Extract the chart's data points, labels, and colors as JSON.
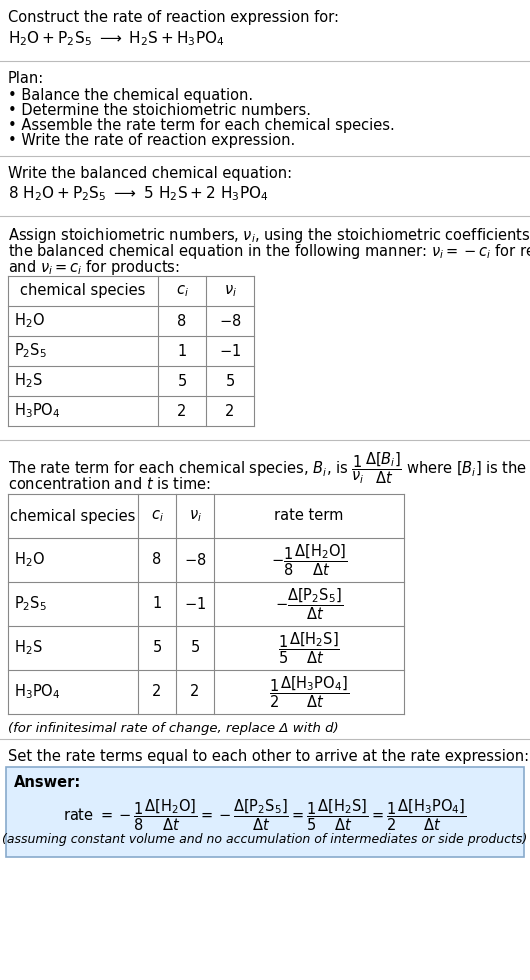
{
  "title_line1": "Construct the rate of reaction expression for:",
  "plan_header": "Plan:",
  "plan_items": [
    "• Balance the chemical equation.",
    "• Determine the stoichiometric numbers.",
    "• Assemble the rate term for each chemical species.",
    "• Write the rate of reaction expression."
  ],
  "balanced_header": "Write the balanced chemical equation:",
  "answer_label": "Answer:",
  "answer_box_color": "#ddeeff",
  "answer_box_border": "#88aacc",
  "assuming_note": "(assuming constant volume and no accumulation of intermediates or side products)",
  "infinitesimal_note": "(for infinitesimal rate of change, replace Δ with d)",
  "set_equal_text": "Set the rate terms equal to each other to arrive at the rate expression:",
  "bg_color": "#ffffff",
  "separator_color": "#bbbbbb",
  "table_border_color": "#888888",
  "font_size": 10.5,
  "font_size_small": 9.5,
  "font_size_eq": 11
}
